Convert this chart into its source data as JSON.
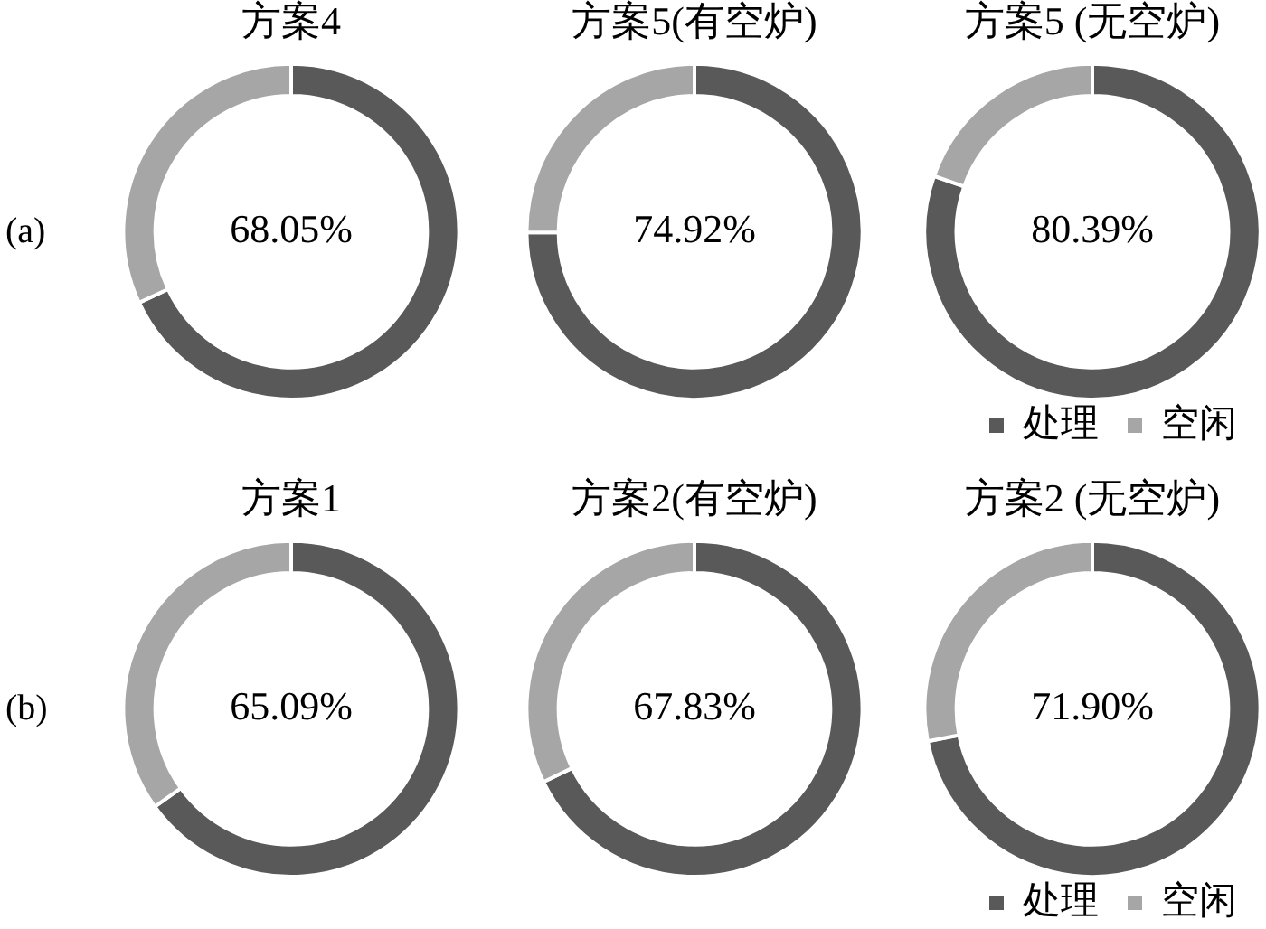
{
  "chart_data": [
    {
      "type": "donut",
      "title": "方案4",
      "ylabel": "(a)",
      "categories": [
        null,
        null
      ],
      "values": [
        68.05,
        31.95
      ],
      "colors": [
        "#595959",
        "#a6a6a6"
      ],
      "annotations": [
        "68.05%"
      ]
    },
    {
      "type": "donut",
      "title": "方案5(有空炉)",
      "categories": [
        null,
        null
      ],
      "values": [
        74.92,
        25.08
      ],
      "colors": [
        "#595959",
        "#a6a6a6"
      ],
      "annotations": [
        "74.92%"
      ]
    },
    {
      "type": "donut",
      "title": "方案5 (无空炉)",
      "categories": [
        "处理",
        "空闲"
      ],
      "values": [
        80.39,
        19.61
      ],
      "colors": [
        "#595959",
        "#a6a6a6"
      ],
      "annotations": [
        "80.39%"
      ],
      "legend": "bottom right"
    },
    {
      "type": "donut",
      "title": "方案1",
      "ylabel": "(b)",
      "categories": [
        null,
        null
      ],
      "values": [
        65.09,
        34.91
      ],
      "colors": [
        "#595959",
        "#a6a6a6"
      ],
      "annotations": [
        "65.09%"
      ]
    },
    {
      "type": "donut",
      "title": "方案2(有空炉)",
      "categories": [
        null,
        null
      ],
      "values": [
        67.83,
        32.17
      ],
      "colors": [
        "#595959",
        "#a6a6a6"
      ],
      "annotations": [
        "67.83%"
      ]
    },
    {
      "type": "donut",
      "title": "方案2 (无空炉)",
      "categories": [
        "处理",
        "空闲"
      ],
      "values": [
        71.9,
        28.1
      ],
      "colors": [
        "#595959",
        "#a6a6a6"
      ],
      "annotations": [
        "71.90%"
      ],
      "legend": "bottom right"
    }
  ]
}
